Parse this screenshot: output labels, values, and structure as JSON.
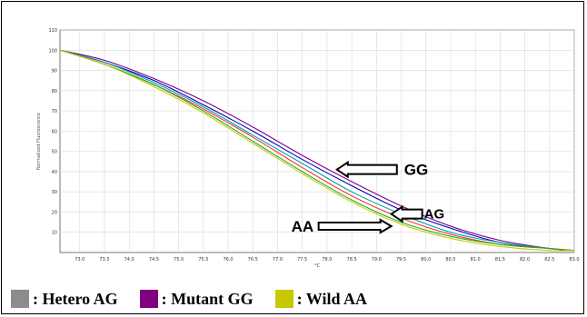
{
  "chart_data": {
    "type": "line",
    "ylabel": "Normalized Fluorescence",
    "xlabel": "°C",
    "xlim": [
      72.6,
      83.0
    ],
    "ylim": [
      0,
      110
    ],
    "x_ticks": [
      "73.0",
      "73.5",
      "74.0",
      "74.5",
      "75.0",
      "75.5",
      "76.0",
      "76.5",
      "77.0",
      "77.5",
      "78.0",
      "78.5",
      "79.0",
      "79.5",
      "80.0",
      "80.5",
      "81.0",
      "81.5",
      "82.0",
      "82.5",
      "83.0"
    ],
    "y_ticks": [
      "10",
      "20",
      "30",
      "40",
      "50",
      "60",
      "70",
      "80",
      "90",
      "100",
      "110"
    ],
    "grid": true,
    "annotations": [
      {
        "text": "GG",
        "target": [
          78.2,
          41
        ]
      },
      {
        "text": "AG",
        "target": [
          79.3,
          19
        ]
      },
      {
        "text": "AA",
        "target": [
          79.3,
          13
        ]
      }
    ],
    "series": [
      {
        "group": "Mutant GG",
        "color": "#800080",
        "x": [
          72.6,
          73.5,
          74.5,
          75.5,
          76.5,
          77.5,
          78.5,
          79.5,
          80.5,
          81.5,
          82.5,
          83.0
        ],
        "y": [
          100,
          95,
          86,
          75,
          62,
          48,
          35,
          23,
          13,
          6,
          2,
          1
        ]
      },
      {
        "group": "Mutant GG",
        "color": "#0000cc",
        "x": [
          72.6,
          73.5,
          74.5,
          75.5,
          76.5,
          77.5,
          78.5,
          79.5,
          80.5,
          81.5,
          82.5,
          83.0
        ],
        "y": [
          100,
          94,
          85,
          73,
          60,
          46,
          33,
          21,
          12,
          5,
          2,
          1
        ]
      },
      {
        "group": "Hetero AG",
        "color": "#00a0a0",
        "x": [
          72.6,
          73.5,
          74.5,
          75.5,
          76.5,
          77.5,
          78.5,
          79.5,
          80.5,
          81.5,
          82.5,
          83.0
        ],
        "y": [
          100,
          94,
          84,
          72,
          58,
          44,
          30,
          19,
          10,
          5,
          2,
          1
        ]
      },
      {
        "group": "Hetero AG",
        "color": "#ff3333",
        "x": [
          72.6,
          73.5,
          74.5,
          75.5,
          76.5,
          77.5,
          78.5,
          79.5,
          80.5,
          81.5,
          82.5,
          83.0
        ],
        "y": [
          100,
          93,
          83,
          71,
          57,
          42,
          28,
          17,
          9,
          4,
          2,
          1
        ]
      },
      {
        "group": "Wild AA",
        "color": "#22aa22",
        "x": [
          72.6,
          73.5,
          74.5,
          75.5,
          76.5,
          77.5,
          78.5,
          79.5,
          80.5,
          81.5,
          82.5,
          83.0
        ],
        "y": [
          100,
          93,
          83,
          70,
          55,
          40,
          26,
          15,
          8,
          4,
          2,
          1
        ]
      },
      {
        "group": "Wild AA",
        "color": "#c8c800",
        "x": [
          72.6,
          73.5,
          74.5,
          75.5,
          76.5,
          77.5,
          78.5,
          79.5,
          80.5,
          81.5,
          82.5,
          83.0
        ],
        "y": [
          100,
          93,
          82,
          69,
          54,
          39,
          25,
          14,
          7,
          3,
          1,
          1
        ]
      }
    ]
  },
  "legend": [
    {
      "label": ": Hetero AG",
      "color": "#8c8c8c"
    },
    {
      "label": ": Mutant GG",
      "color": "#800080"
    },
    {
      "label": ": Wild AA",
      "color": "#c8c800"
    }
  ]
}
